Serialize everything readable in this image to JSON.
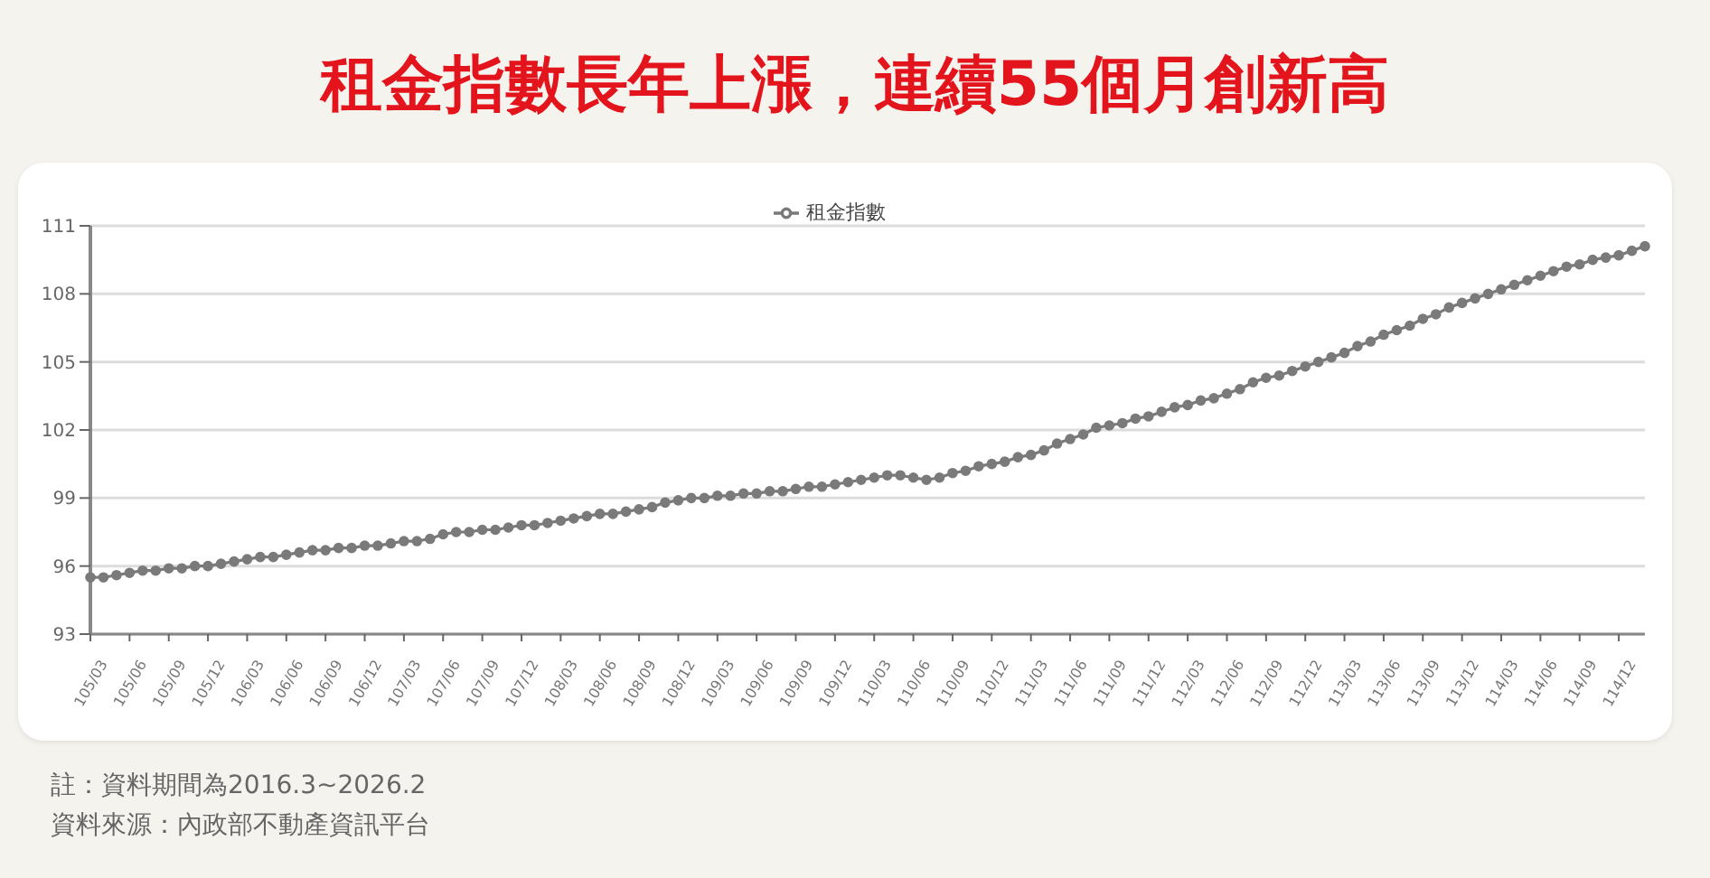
{
  "chart_data": {
    "type": "line",
    "title": "租金指數長年上漲，連續55個月創新高",
    "annotations": [
      "註：資料期間為2016.3~2026.2",
      "資料來源：內政部不動產資訊平台"
    ],
    "categories": [
      "105/03",
      null,
      null,
      "105/06",
      null,
      null,
      "105/09",
      null,
      null,
      "105/12",
      null,
      null,
      "106/03",
      null,
      null,
      "106/06",
      null,
      null,
      "106/09",
      null,
      null,
      "106/12",
      null,
      null,
      "107/03",
      null,
      null,
      "107/06",
      null,
      null,
      "107/09",
      null,
      null,
      "107/12",
      null,
      null,
      "108/03",
      null,
      null,
      "108/06",
      null,
      null,
      "108/09",
      null,
      null,
      "108/12",
      null,
      null,
      "109/03",
      null,
      null,
      "109/06",
      null,
      null,
      "109/09",
      null,
      null,
      "109/12",
      null,
      null,
      "110/03",
      null,
      null,
      "110/06",
      null,
      null,
      "110/09",
      null,
      null,
      "110/12",
      null,
      null,
      "111/03",
      null,
      null,
      "111/06",
      null,
      null,
      "111/09",
      null,
      null,
      "111/12",
      null,
      null,
      "112/03",
      null,
      null,
      "112/06",
      null,
      null,
      "112/09",
      null,
      null,
      "112/12",
      null,
      null,
      "113/03",
      null,
      null,
      "113/06",
      null,
      null,
      "113/09",
      null,
      null,
      "113/12",
      null,
      null,
      "114/03",
      null,
      null,
      "114/06",
      null,
      null,
      "114/09",
      null,
      null,
      "114/12",
      null,
      null
    ],
    "series": [
      {
        "name": "租金指數",
        "color": "#7a7a7a",
        "values": [
          95.5,
          95.5,
          95.6,
          95.7,
          95.8,
          95.8,
          95.9,
          95.9,
          96.0,
          96.0,
          96.1,
          96.2,
          96.3,
          96.4,
          96.4,
          96.5,
          96.6,
          96.7,
          96.7,
          96.8,
          96.8,
          96.9,
          96.9,
          97.0,
          97.1,
          97.1,
          97.2,
          97.4,
          97.5,
          97.5,
          97.6,
          97.6,
          97.7,
          97.8,
          97.8,
          97.9,
          98.0,
          98.1,
          98.2,
          98.3,
          98.3,
          98.4,
          98.5,
          98.6,
          98.8,
          98.9,
          99.0,
          99.0,
          99.1,
          99.1,
          99.2,
          99.2,
          99.3,
          99.3,
          99.4,
          99.5,
          99.5,
          99.6,
          99.7,
          99.8,
          99.9,
          100.0,
          100.0,
          99.9,
          99.8,
          99.9,
          100.1,
          100.2,
          100.4,
          100.5,
          100.6,
          100.8,
          100.9,
          101.1,
          101.4,
          101.6,
          101.8,
          102.1,
          102.2,
          102.3,
          102.5,
          102.6,
          102.8,
          103.0,
          103.1,
          103.3,
          103.4,
          103.6,
          103.8,
          104.1,
          104.3,
          104.4,
          104.6,
          104.8,
          105.0,
          105.2,
          105.4,
          105.7,
          105.9,
          106.2,
          106.4,
          106.6,
          106.9,
          107.1,
          107.4,
          107.6,
          107.8,
          108.0,
          108.2,
          108.4,
          108.6,
          108.8,
          109.0,
          109.2,
          109.3,
          109.5,
          109.6,
          109.7,
          109.9,
          110.1
        ]
      }
    ],
    "ylim": [
      93,
      111
    ],
    "yticks": [
      93,
      96,
      99,
      102,
      105,
      108,
      111
    ],
    "grid": "y",
    "legend": "top",
    "marker": "circle",
    "line_style": "solid"
  }
}
